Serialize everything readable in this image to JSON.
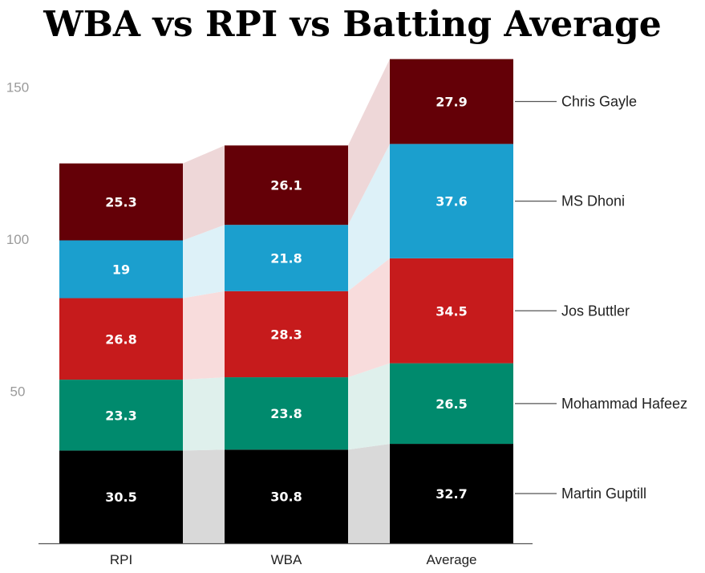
{
  "title": "WBA vs RPI vs Batting Average",
  "chart_data": {
    "type": "bar",
    "stacked": true,
    "title": "WBA vs RPI vs Batting Average",
    "xlabel": "",
    "ylabel": "",
    "categories": [
      "RPI",
      "WBA",
      "Average"
    ],
    "ylim": [
      0,
      160
    ],
    "yticks": [
      50,
      100,
      150
    ],
    "grid": false,
    "legend_placement": "right (inline labels)",
    "series": [
      {
        "name": "Martin Guptill",
        "values": [
          30.5,
          30.8,
          32.7
        ],
        "labels": [
          "30.5",
          "30.8",
          "32.7"
        ],
        "color": "#000000",
        "ribbon": "#d9d9d9"
      },
      {
        "name": "Mohammad Hafeez",
        "values": [
          23.3,
          23.8,
          26.5
        ],
        "labels": [
          "23.3",
          "23.8",
          "26.5"
        ],
        "color": "#008a6d",
        "ribbon": "#dff0ec"
      },
      {
        "name": "Jos Buttler",
        "values": [
          26.8,
          28.3,
          34.5
        ],
        "labels": [
          "26.8",
          "28.3",
          "34.5"
        ],
        "color": "#c61b1c",
        "ribbon": "#f8dcdc"
      },
      {
        "name": "MS Dhoni",
        "values": [
          19,
          21.8,
          37.6
        ],
        "labels": [
          "19",
          "21.8",
          "37.6"
        ],
        "color": "#1b9fce",
        "ribbon": "#ddf1f8"
      },
      {
        "name": "Chris Gayle",
        "values": [
          25.3,
          26.1,
          27.9
        ],
        "labels": [
          "25.3",
          "26.1",
          "27.9"
        ],
        "color": "#640007",
        "ribbon": "#eed7d8"
      }
    ]
  }
}
